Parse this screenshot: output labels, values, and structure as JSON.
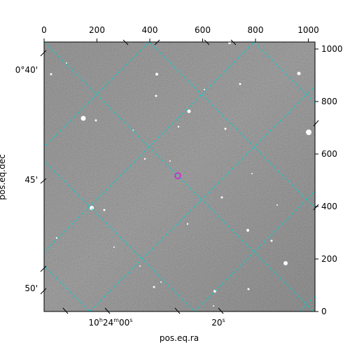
{
  "image": {
    "kind": "astronomical-fits-cutout",
    "background": "grayscale-noise",
    "grid_color": "#00d0d0",
    "marker_color": "#d020d0"
  },
  "axes": {
    "xlabel": "pos.eq.ra",
    "ylabel": "pos.eq.dec",
    "pixel_x_ticks": [
      "0",
      "200",
      "400",
      "600",
      "800",
      "1000"
    ],
    "pixel_y_ticks": [
      "0",
      "200",
      "400",
      "600",
      "800",
      "1000"
    ],
    "ra_ticks": [
      "10h24m00s",
      "20s"
    ],
    "dec_ticks": [
      "0°40'",
      "45'",
      "50'"
    ]
  }
}
